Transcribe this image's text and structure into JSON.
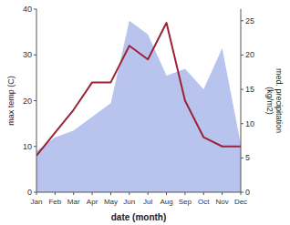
{
  "chart_data": {
    "type": "line",
    "categories": [
      "Jan",
      "Feb",
      "Mar",
      "Apr",
      "May",
      "Jun",
      "Jul",
      "Aug",
      "Sep",
      "Oct",
      "Nov",
      "Dec"
    ],
    "xlabel": "date (month)",
    "ylabel": "max temp (C)",
    "y2label": "med. precipitation\n(kg/m2)",
    "ylim": [
      0,
      40
    ],
    "yticks": [
      0,
      10,
      20,
      30,
      40
    ],
    "y2lim": [
      0,
      26.7
    ],
    "y2ticks": [
      0,
      5,
      10,
      15,
      20,
      25
    ],
    "grid": false,
    "series": [
      {
        "type": "area",
        "axis": "y2",
        "color": "#b8c4ee",
        "values": [
          6,
          8,
          9,
          11,
          13,
          25,
          23,
          17,
          18,
          15,
          21,
          7
        ]
      },
      {
        "type": "line",
        "color": "#9b2335",
        "values": [
          8,
          13,
          18,
          24,
          24,
          32,
          29,
          37,
          20,
          12,
          10,
          10
        ]
      }
    ]
  }
}
